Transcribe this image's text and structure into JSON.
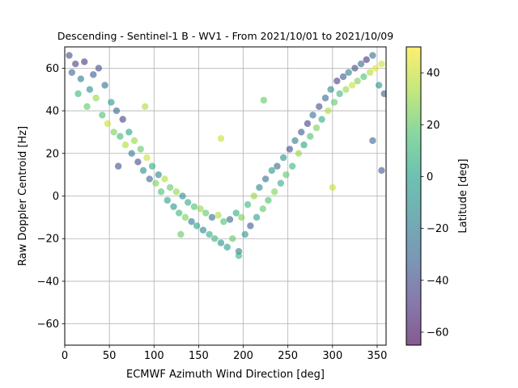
{
  "chart_data": {
    "type": "scatter",
    "title": "Descending - Sentinel-1 B - WV1 - From 2021/10/01 to 2021/10/09",
    "xlabel": "ECMWF Azimuth Wind Direction [deg]",
    "ylabel": "Raw Doppler Centroid [Hz]",
    "xlim": [
      0,
      360
    ],
    "ylim": [
      -70,
      70
    ],
    "xticks": [
      "0",
      "50",
      "100",
      "150",
      "200",
      "250",
      "300",
      "350"
    ],
    "yticks": [
      "−60",
      "−40",
      "−20",
      "0",
      "20",
      "40",
      "60"
    ],
    "grid": true,
    "colormap": "viridis",
    "marker_alpha": 0.6,
    "colorbar": {
      "label": "Latitude [deg]",
      "range": [
        -65,
        50
      ],
      "ticks": [
        "−60",
        "−40",
        "−20",
        "0",
        "20",
        "40"
      ]
    },
    "series": [
      {
        "points": [
          {
            "x": 5,
            "y": 66,
            "lat": -40
          },
          {
            "x": 8,
            "y": 58,
            "lat": -30
          },
          {
            "x": 12,
            "y": 62,
            "lat": -45
          },
          {
            "x": 15,
            "y": 48,
            "lat": 10
          },
          {
            "x": 18,
            "y": 55,
            "lat": -20
          },
          {
            "x": 22,
            "y": 63,
            "lat": -50
          },
          {
            "x": 25,
            "y": 42,
            "lat": 20
          },
          {
            "x": 28,
            "y": 50,
            "lat": -10
          },
          {
            "x": 32,
            "y": 57,
            "lat": -35
          },
          {
            "x": 35,
            "y": 46,
            "lat": 30
          },
          {
            "x": 38,
            "y": 60,
            "lat": -40
          },
          {
            "x": 42,
            "y": 38,
            "lat": 15
          },
          {
            "x": 45,
            "y": 52,
            "lat": -25
          },
          {
            "x": 48,
            "y": 34,
            "lat": 40
          },
          {
            "x": 52,
            "y": 44,
            "lat": -5
          },
          {
            "x": 55,
            "y": 30,
            "lat": 25
          },
          {
            "x": 58,
            "y": 40,
            "lat": -30
          },
          {
            "x": 62,
            "y": 28,
            "lat": 10
          },
          {
            "x": 65,
            "y": 36,
            "lat": -45
          },
          {
            "x": 68,
            "y": 24,
            "lat": 35
          },
          {
            "x": 72,
            "y": 30,
            "lat": 0
          },
          {
            "x": 75,
            "y": 20,
            "lat": -20
          },
          {
            "x": 78,
            "y": 26,
            "lat": 30
          },
          {
            "x": 82,
            "y": 16,
            "lat": -40
          },
          {
            "x": 85,
            "y": 22,
            "lat": 20
          },
          {
            "x": 88,
            "y": 12,
            "lat": -10
          },
          {
            "x": 92,
            "y": 18,
            "lat": 40
          },
          {
            "x": 95,
            "y": 8,
            "lat": -30
          },
          {
            "x": 98,
            "y": 14,
            "lat": 5
          },
          {
            "x": 102,
            "y": 6,
            "lat": 25
          },
          {
            "x": 105,
            "y": 10,
            "lat": -15
          },
          {
            "x": 108,
            "y": 2,
            "lat": 15
          },
          {
            "x": 112,
            "y": 8,
            "lat": 35
          },
          {
            "x": 115,
            "y": -2,
            "lat": 0
          },
          {
            "x": 118,
            "y": 4,
            "lat": 20
          },
          {
            "x": 122,
            "y": -5,
            "lat": -5
          },
          {
            "x": 125,
            "y": 2,
            "lat": 30
          },
          {
            "x": 128,
            "y": -8,
            "lat": 10
          },
          {
            "x": 132,
            "y": 0,
            "lat": -10
          },
          {
            "x": 135,
            "y": -10,
            "lat": 25
          },
          {
            "x": 138,
            "y": -3,
            "lat": 5
          },
          {
            "x": 142,
            "y": -12,
            "lat": -20
          },
          {
            "x": 145,
            "y": -5,
            "lat": 15
          },
          {
            "x": 148,
            "y": -14,
            "lat": 0
          },
          {
            "x": 152,
            "y": -6,
            "lat": 30
          },
          {
            "x": 155,
            "y": -16,
            "lat": -15
          },
          {
            "x": 158,
            "y": -8,
            "lat": 20
          },
          {
            "x": 162,
            "y": -18,
            "lat": 5
          },
          {
            "x": 165,
            "y": -10,
            "lat": -25
          },
          {
            "x": 168,
            "y": -20,
            "lat": 10
          },
          {
            "x": 172,
            "y": -9,
            "lat": 35
          },
          {
            "x": 175,
            "y": -22,
            "lat": -10
          },
          {
            "x": 178,
            "y": -12,
            "lat": 15
          },
          {
            "x": 182,
            "y": -24,
            "lat": 0
          },
          {
            "x": 185,
            "y": -11,
            "lat": -30
          },
          {
            "x": 188,
            "y": -20,
            "lat": 20
          },
          {
            "x": 192,
            "y": -8,
            "lat": 5
          },
          {
            "x": 195,
            "y": -26,
            "lat": -20
          },
          {
            "x": 198,
            "y": -10,
            "lat": 25
          },
          {
            "x": 202,
            "y": -18,
            "lat": -5
          },
          {
            "x": 205,
            "y": -4,
            "lat": 10
          },
          {
            "x": 208,
            "y": -14,
            "lat": -35
          },
          {
            "x": 212,
            "y": 0,
            "lat": 30
          },
          {
            "x": 215,
            "y": -10,
            "lat": 0
          },
          {
            "x": 218,
            "y": 4,
            "lat": -15
          },
          {
            "x": 222,
            "y": -6,
            "lat": 20
          },
          {
            "x": 225,
            "y": 8,
            "lat": -25
          },
          {
            "x": 228,
            "y": -2,
            "lat": 15
          },
          {
            "x": 232,
            "y": 12,
            "lat": -5
          },
          {
            "x": 235,
            "y": 2,
            "lat": 25
          },
          {
            "x": 238,
            "y": 14,
            "lat": -30
          },
          {
            "x": 242,
            "y": 6,
            "lat": 5
          },
          {
            "x": 245,
            "y": 18,
            "lat": -10
          },
          {
            "x": 248,
            "y": 10,
            "lat": 20
          },
          {
            "x": 252,
            "y": 22,
            "lat": -40
          },
          {
            "x": 255,
            "y": 14,
            "lat": 10
          },
          {
            "x": 258,
            "y": 26,
            "lat": -20
          },
          {
            "x": 262,
            "y": 20,
            "lat": 30
          },
          {
            "x": 265,
            "y": 30,
            "lat": -35
          },
          {
            "x": 268,
            "y": 24,
            "lat": 0
          },
          {
            "x": 272,
            "y": 34,
            "lat": -45
          },
          {
            "x": 275,
            "y": 28,
            "lat": 15
          },
          {
            "x": 278,
            "y": 38,
            "lat": -25
          },
          {
            "x": 282,
            "y": 32,
            "lat": 25
          },
          {
            "x": 285,
            "y": 42,
            "lat": -40
          },
          {
            "x": 288,
            "y": 36,
            "lat": 5
          },
          {
            "x": 292,
            "y": 46,
            "lat": -30
          },
          {
            "x": 295,
            "y": 40,
            "lat": 35
          },
          {
            "x": 298,
            "y": 50,
            "lat": -15
          },
          {
            "x": 302,
            "y": 44,
            "lat": 20
          },
          {
            "x": 305,
            "y": 54,
            "lat": -45
          },
          {
            "x": 308,
            "y": 48,
            "lat": 10
          },
          {
            "x": 312,
            "y": 56,
            "lat": -35
          },
          {
            "x": 315,
            "y": 50,
            "lat": 30
          },
          {
            "x": 318,
            "y": 58,
            "lat": -20
          },
          {
            "x": 322,
            "y": 52,
            "lat": 40
          },
          {
            "x": 325,
            "y": 60,
            "lat": -40
          },
          {
            "x": 328,
            "y": 54,
            "lat": 25
          },
          {
            "x": 332,
            "y": 62,
            "lat": -30
          },
          {
            "x": 335,
            "y": 56,
            "lat": 15
          },
          {
            "x": 338,
            "y": 64,
            "lat": -50
          },
          {
            "x": 342,
            "y": 58,
            "lat": 35
          },
          {
            "x": 345,
            "y": 66,
            "lat": -25
          },
          {
            "x": 348,
            "y": 60,
            "lat": 45
          },
          {
            "x": 352,
            "y": 52,
            "lat": -10
          },
          {
            "x": 355,
            "y": 62,
            "lat": 40
          },
          {
            "x": 358,
            "y": 48,
            "lat": -35
          },
          {
            "x": 345,
            "y": 26,
            "lat": -30
          },
          {
            "x": 355,
            "y": 12,
            "lat": -35
          },
          {
            "x": 300,
            "y": 4,
            "lat": 40
          },
          {
            "x": 223,
            "y": 45,
            "lat": 20
          },
          {
            "x": 195,
            "y": -28,
            "lat": 10
          },
          {
            "x": 175,
            "y": 27,
            "lat": 40
          },
          {
            "x": 130,
            "y": -18,
            "lat": 20
          },
          {
            "x": 60,
            "y": 14,
            "lat": -40
          },
          {
            "x": 90,
            "y": 42,
            "lat": 35
          }
        ]
      }
    ]
  }
}
